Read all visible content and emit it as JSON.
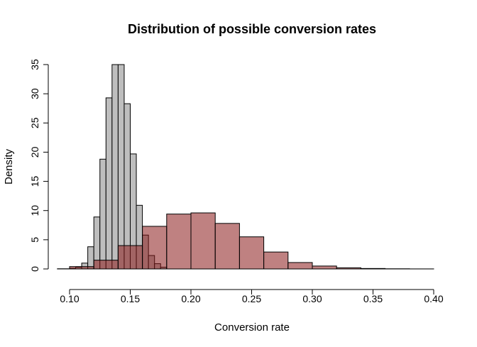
{
  "chart_data": {
    "type": "histogram",
    "title": "Distribution of possible conversion rates",
    "xlabel": "Conversion rate",
    "ylabel": "Density",
    "xlim": [
      0.09,
      0.4
    ],
    "ylim": [
      0,
      35
    ],
    "xticks": [
      "0.10",
      "0.15",
      "0.20",
      "0.25",
      "0.30",
      "0.35",
      "0.40"
    ],
    "xtick_values": [
      0.1,
      0.15,
      0.2,
      0.25,
      0.3,
      0.35,
      0.4
    ],
    "yticks": [
      "0",
      "5",
      "10",
      "15",
      "20",
      "25",
      "30",
      "35"
    ],
    "ytick_values": [
      0,
      5,
      10,
      15,
      20,
      25,
      30,
      35
    ],
    "grid": false,
    "legend": false,
    "series": [
      {
        "color": "#bebebe",
        "bins": [
          {
            "x0": 0.09,
            "x1": 0.1,
            "density": 0.02
          },
          {
            "x0": 0.1,
            "x1": 0.105,
            "density": 0.1
          },
          {
            "x0": 0.105,
            "x1": 0.11,
            "density": 0.3
          },
          {
            "x0": 0.11,
            "x1": 0.115,
            "density": 1.0
          },
          {
            "x0": 0.115,
            "x1": 0.12,
            "density": 3.8
          },
          {
            "x0": 0.12,
            "x1": 0.125,
            "density": 8.9
          },
          {
            "x0": 0.125,
            "x1": 0.13,
            "density": 18.8
          },
          {
            "x0": 0.13,
            "x1": 0.135,
            "density": 29.3
          },
          {
            "x0": 0.135,
            "x1": 0.14,
            "density": 35.0
          },
          {
            "x0": 0.14,
            "x1": 0.145,
            "density": 35.0
          },
          {
            "x0": 0.145,
            "x1": 0.15,
            "density": 28.3
          },
          {
            "x0": 0.15,
            "x1": 0.155,
            "density": 19.7
          },
          {
            "x0": 0.155,
            "x1": 0.16,
            "density": 10.9
          },
          {
            "x0": 0.16,
            "x1": 0.165,
            "density": 5.8
          },
          {
            "x0": 0.165,
            "x1": 0.17,
            "density": 2.3
          },
          {
            "x0": 0.17,
            "x1": 0.175,
            "density": 0.9
          },
          {
            "x0": 0.175,
            "x1": 0.18,
            "density": 0.3
          }
        ]
      },
      {
        "color": "rgba(139,26,26,0.55)",
        "bins": [
          {
            "x0": 0.09,
            "x1": 0.1,
            "density": 0.02
          },
          {
            "x0": 0.1,
            "x1": 0.12,
            "density": 0.4
          },
          {
            "x0": 0.12,
            "x1": 0.14,
            "density": 1.5
          },
          {
            "x0": 0.14,
            "x1": 0.16,
            "density": 4.0
          },
          {
            "x0": 0.16,
            "x1": 0.18,
            "density": 7.3
          },
          {
            "x0": 0.18,
            "x1": 0.2,
            "density": 9.4
          },
          {
            "x0": 0.2,
            "x1": 0.22,
            "density": 9.6
          },
          {
            "x0": 0.22,
            "x1": 0.24,
            "density": 7.8
          },
          {
            "x0": 0.24,
            "x1": 0.26,
            "density": 5.5
          },
          {
            "x0": 0.26,
            "x1": 0.28,
            "density": 2.9
          },
          {
            "x0": 0.28,
            "x1": 0.3,
            "density": 1.1
          },
          {
            "x0": 0.3,
            "x1": 0.32,
            "density": 0.5
          },
          {
            "x0": 0.32,
            "x1": 0.34,
            "density": 0.2
          },
          {
            "x0": 0.34,
            "x1": 0.36,
            "density": 0.08
          },
          {
            "x0": 0.36,
            "x1": 0.38,
            "density": 0.03
          },
          {
            "x0": 0.38,
            "x1": 0.4,
            "density": 0.01
          }
        ]
      }
    ]
  }
}
